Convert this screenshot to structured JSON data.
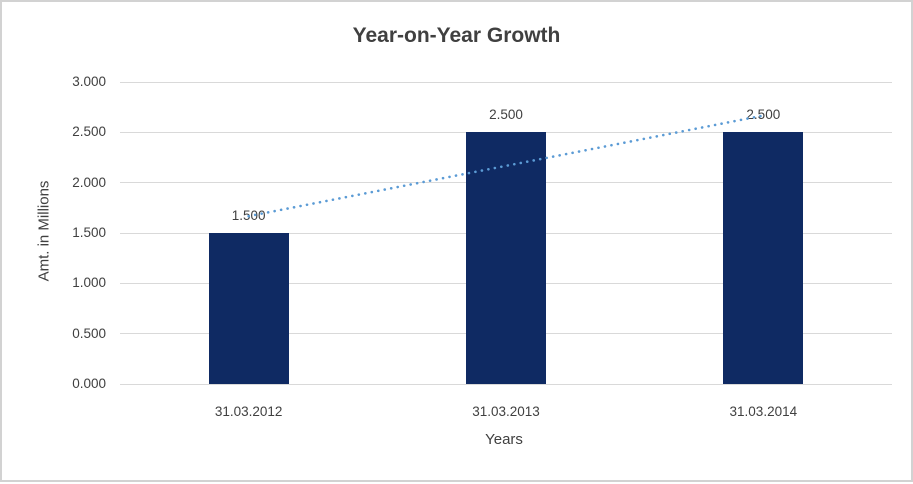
{
  "page": {
    "background": "#ffffff",
    "border_color": "#d2d2d2"
  },
  "chart_data": {
    "type": "bar",
    "title": "Year-on-Year Growth",
    "xlabel": "Years",
    "ylabel": "Amt. in Millions",
    "categories": [
      "31.03.2012",
      "31.03.2013",
      "31.03.2014"
    ],
    "values": [
      1.5,
      2.5,
      2.5
    ],
    "data_labels": [
      "1.500",
      "2.500",
      "2.500"
    ],
    "ylim": [
      0,
      3
    ],
    "ytick_step": 0.5,
    "ytick_labels": [
      "0.000",
      "0.500",
      "1.000",
      "1.500",
      "2.000",
      "2.500",
      "3.000"
    ],
    "grid": true,
    "legend": "none",
    "colors": {
      "bar": "#0f2a63",
      "trendline": "#5b9bd5",
      "gridline": "#d9d9d9",
      "text": "#404040"
    },
    "trendline": {
      "type": "linear",
      "style": "dotted",
      "points": [
        {
          "category_index": 0,
          "value": 1.667
        },
        {
          "category_index": 2,
          "value": 2.667
        }
      ]
    }
  }
}
